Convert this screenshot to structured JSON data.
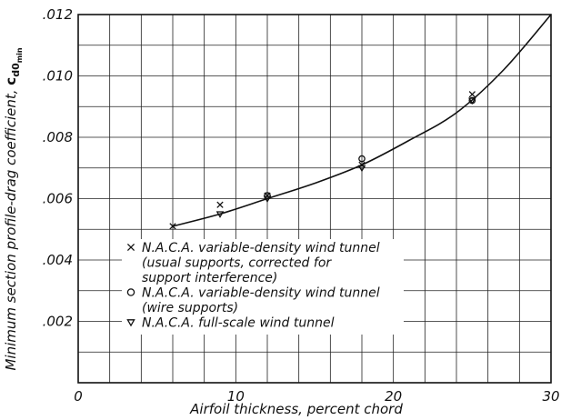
{
  "chart_data": {
    "type": "scatter",
    "title": "",
    "xlabel": "Airfoil thickness, percent chord",
    "ylabel": "Minimum section profile-drag coefficient,",
    "ylabel_symbol": "c",
    "ylabel_subscript": "d0",
    "ylabel_sub_subscript": "min",
    "xlim": [
      0,
      30
    ],
    "ylim": [
      0,
      0.012
    ],
    "x_ticks": [
      {
        "value": 0,
        "label": "0"
      },
      {
        "value": 10,
        "label": "10"
      },
      {
        "value": 20,
        "label": "20"
      },
      {
        "value": 30,
        "label": "30"
      }
    ],
    "y_ticks": [
      {
        "value": 0.002,
        "label": ".002"
      },
      {
        "value": 0.004,
        "label": ".004"
      },
      {
        "value": 0.006,
        "label": ".006"
      },
      {
        "value": 0.008,
        "label": ".008"
      },
      {
        "value": 0.01,
        "label": ".010"
      },
      {
        "value": 0.012,
        "label": ".012"
      }
    ],
    "x_grid_step": 2,
    "y_grid_step": 0.001,
    "grid": true,
    "legend_position": "bottom-center",
    "series": [
      {
        "name": "N.A.C.A. variable-density wind tunnel (usual supports, corrected for support interference)",
        "legend_lines": [
          "N.A.C.A. variable-density wind tunnel",
          "(usual supports, corrected for",
          "support interference)"
        ],
        "marker": "x",
        "points": [
          {
            "x": 6,
            "y": 0.0051
          },
          {
            "x": 9,
            "y": 0.0058
          },
          {
            "x": 12,
            "y": 0.0061
          },
          {
            "x": 18,
            "y": 0.0071
          },
          {
            "x": 25,
            "y": 0.0094
          }
        ]
      },
      {
        "name": "N.A.C.A. variable-density wind tunnel (wire supports)",
        "legend_lines": [
          "N.A.C.A. variable-density wind tunnel",
          "(wire supports)"
        ],
        "marker": "circle",
        "points": [
          {
            "x": 12,
            "y": 0.0061
          },
          {
            "x": 18,
            "y": 0.0073
          },
          {
            "x": 25,
            "y": 0.0092
          }
        ]
      },
      {
        "name": "N.A.C.A. full-scale wind tunnel",
        "legend_lines": [
          "N.A.C.A. full-scale wind tunnel"
        ],
        "marker": "triangle",
        "points": [
          {
            "x": 9,
            "y": 0.0055
          },
          {
            "x": 12,
            "y": 0.006
          },
          {
            "x": 18,
            "y": 0.007
          },
          {
            "x": 25,
            "y": 0.0092
          }
        ]
      }
    ],
    "fitted_curve": [
      {
        "x": 6,
        "y": 0.0051
      },
      {
        "x": 9,
        "y": 0.0055
      },
      {
        "x": 12,
        "y": 0.006
      },
      {
        "x": 15,
        "y": 0.0065
      },
      {
        "x": 18,
        "y": 0.0071
      },
      {
        "x": 21,
        "y": 0.0079
      },
      {
        "x": 24,
        "y": 0.0088
      },
      {
        "x": 27,
        "y": 0.0102
      },
      {
        "x": 30,
        "y": 0.012
      }
    ]
  }
}
